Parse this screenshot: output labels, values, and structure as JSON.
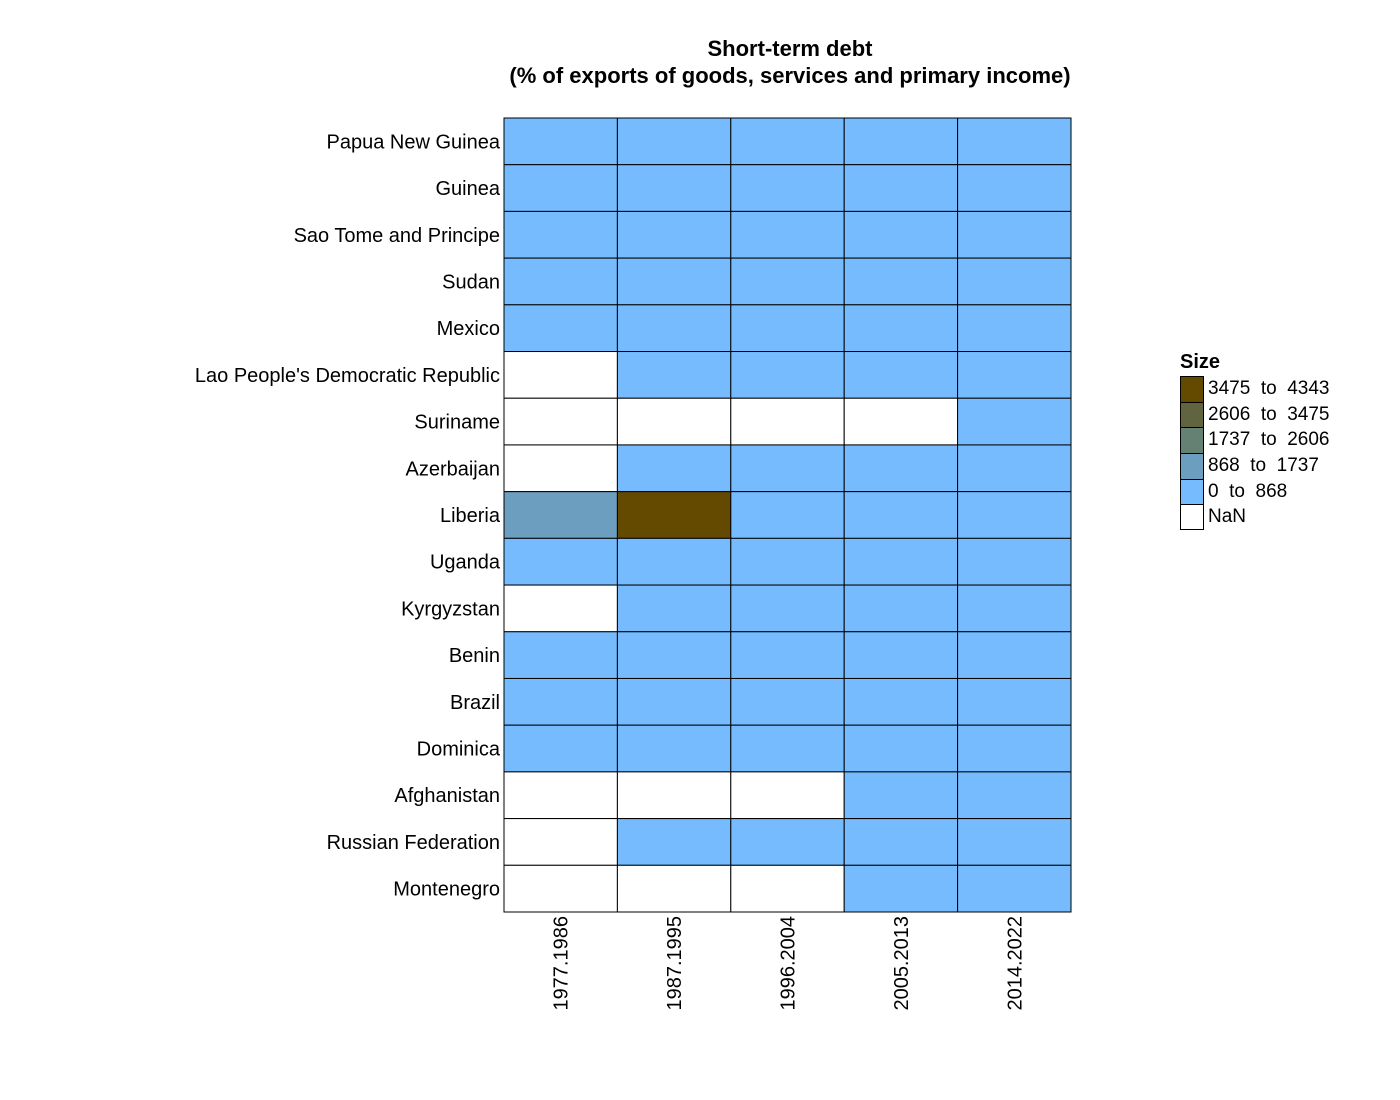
{
  "chart_data": {
    "type": "heatmap",
    "title": "Short-term debt",
    "subtitle": "(% of exports of goods, services and primary income)",
    "rows": [
      "Papua New Guinea",
      "Guinea",
      "Sao Tome and Principe",
      "Sudan",
      "Mexico",
      "Lao People's Democratic Republic",
      "Suriname",
      "Azerbaijan",
      "Liberia",
      "Uganda",
      "Kyrgyzstan",
      "Benin",
      "Brazil",
      "Dominica",
      "Afghanistan",
      "Russian Federation",
      "Montenegro"
    ],
    "columns": [
      "1977.1986",
      "1987.1995",
      "1996.2004",
      "2005.2013",
      "2014.2022"
    ],
    "cells": [
      [
        "0 to 868",
        "0 to 868",
        "0 to 868",
        "0 to 868",
        "0 to 868"
      ],
      [
        "0 to 868",
        "0 to 868",
        "0 to 868",
        "0 to 868",
        "0 to 868"
      ],
      [
        "0 to 868",
        "0 to 868",
        "0 to 868",
        "0 to 868",
        "0 to 868"
      ],
      [
        "0 to 868",
        "0 to 868",
        "0 to 868",
        "0 to 868",
        "0 to 868"
      ],
      [
        "0 to 868",
        "0 to 868",
        "0 to 868",
        "0 to 868",
        "0 to 868"
      ],
      [
        "NaN",
        "0 to 868",
        "0 to 868",
        "0 to 868",
        "0 to 868"
      ],
      [
        "NaN",
        "NaN",
        "NaN",
        "NaN",
        "0 to 868"
      ],
      [
        "NaN",
        "0 to 868",
        "0 to 868",
        "0 to 868",
        "0 to 868"
      ],
      [
        "868 to 1737",
        "3475 to 4343",
        "0 to 868",
        "0 to 868",
        "0 to 868"
      ],
      [
        "0 to 868",
        "0 to 868",
        "0 to 868",
        "0 to 868",
        "0 to 868"
      ],
      [
        "NaN",
        "0 to 868",
        "0 to 868",
        "0 to 868",
        "0 to 868"
      ],
      [
        "0 to 868",
        "0 to 868",
        "0 to 868",
        "0 to 868",
        "0 to 868"
      ],
      [
        "0 to 868",
        "0 to 868",
        "0 to 868",
        "0 to 868",
        "0 to 868"
      ],
      [
        "0 to 868",
        "0 to 868",
        "0 to 868",
        "0 to 868",
        "0 to 868"
      ],
      [
        "NaN",
        "NaN",
        "NaN",
        "0 to 868",
        "0 to 868"
      ],
      [
        "NaN",
        "0 to 868",
        "0 to 868",
        "0 to 868",
        "0 to 868"
      ],
      [
        "NaN",
        "NaN",
        "NaN",
        "0 to 868",
        "0 to 868"
      ]
    ],
    "legend": {
      "title": "Size",
      "position": "right",
      "bins": [
        {
          "label": "3475  to  4343",
          "key": "3475 to 4343",
          "color": "#634a00"
        },
        {
          "label": "2606  to  3475",
          "key": "2606 to 3475",
          "color": "#606540"
        },
        {
          "label": "1737  to  2606",
          "key": "1737 to 2606",
          "color": "#648174"
        },
        {
          "label": "868  to  1737",
          "key": "868 to 1737",
          "color": "#6c9ec0"
        },
        {
          "label": "0  to  868",
          "key": "0 to 868",
          "color": "#75bbfd"
        },
        {
          "label": "NaN",
          "key": "NaN",
          "color": "#ffffff"
        }
      ]
    }
  }
}
